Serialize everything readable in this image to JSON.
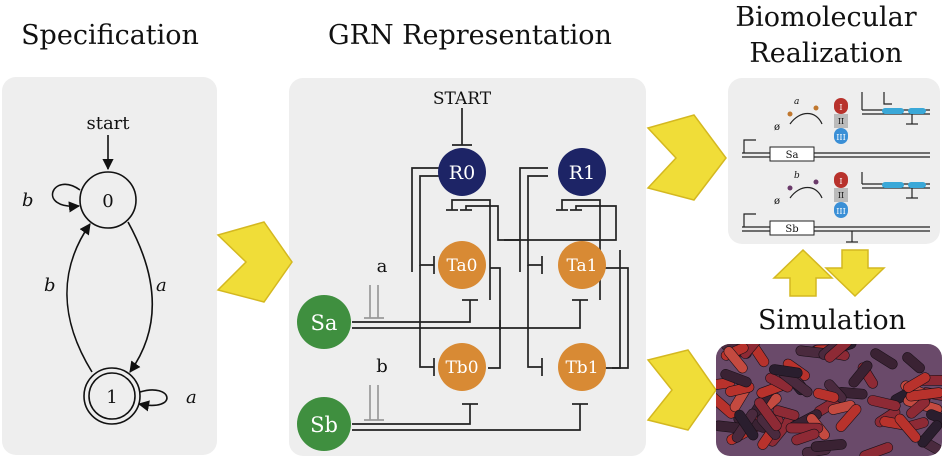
{
  "headings": {
    "specification": "Specification",
    "grn": "GRN Representation",
    "biomolecular_line1": "Biomolecular",
    "biomolecular_line2": "Realization",
    "simulation": "Simulation"
  },
  "fsm": {
    "start_label": "start",
    "state0": "0",
    "state1": "1",
    "edge_b_self": "b",
    "edge_b_back": "b",
    "edge_a_forward": "a",
    "edge_a_self": "a"
  },
  "grn": {
    "start_label": "START",
    "signal_a": "a",
    "signal_b": "b",
    "nodes": {
      "R0": "R0",
      "R1": "R1",
      "Ta0": "Ta0",
      "Ta1": "Ta1",
      "Tb0": "Tb0",
      "Tb1": "Tb1",
      "Sa": "Sa",
      "Sb": "Sb"
    }
  },
  "biomolecular": {
    "top": {
      "inducer": "a",
      "null": "ø",
      "gene": "Sa",
      "part_I": "I",
      "part_II": "II",
      "part_III": "III"
    },
    "bottom": {
      "inducer": "b",
      "null": "ø",
      "gene": "Sb",
      "part_I": "I",
      "part_II": "II",
      "part_III": "III"
    }
  },
  "colors": {
    "panel": "#eeeeee",
    "R_node": "#1d2466",
    "T_node": "#d88a34",
    "S_node": "#3f8f3f",
    "arrow": "#f0dd38",
    "arrow_edge": "#d4b820",
    "cell_red": "#b8322c",
    "cell_dark": "#2a1e2e"
  }
}
